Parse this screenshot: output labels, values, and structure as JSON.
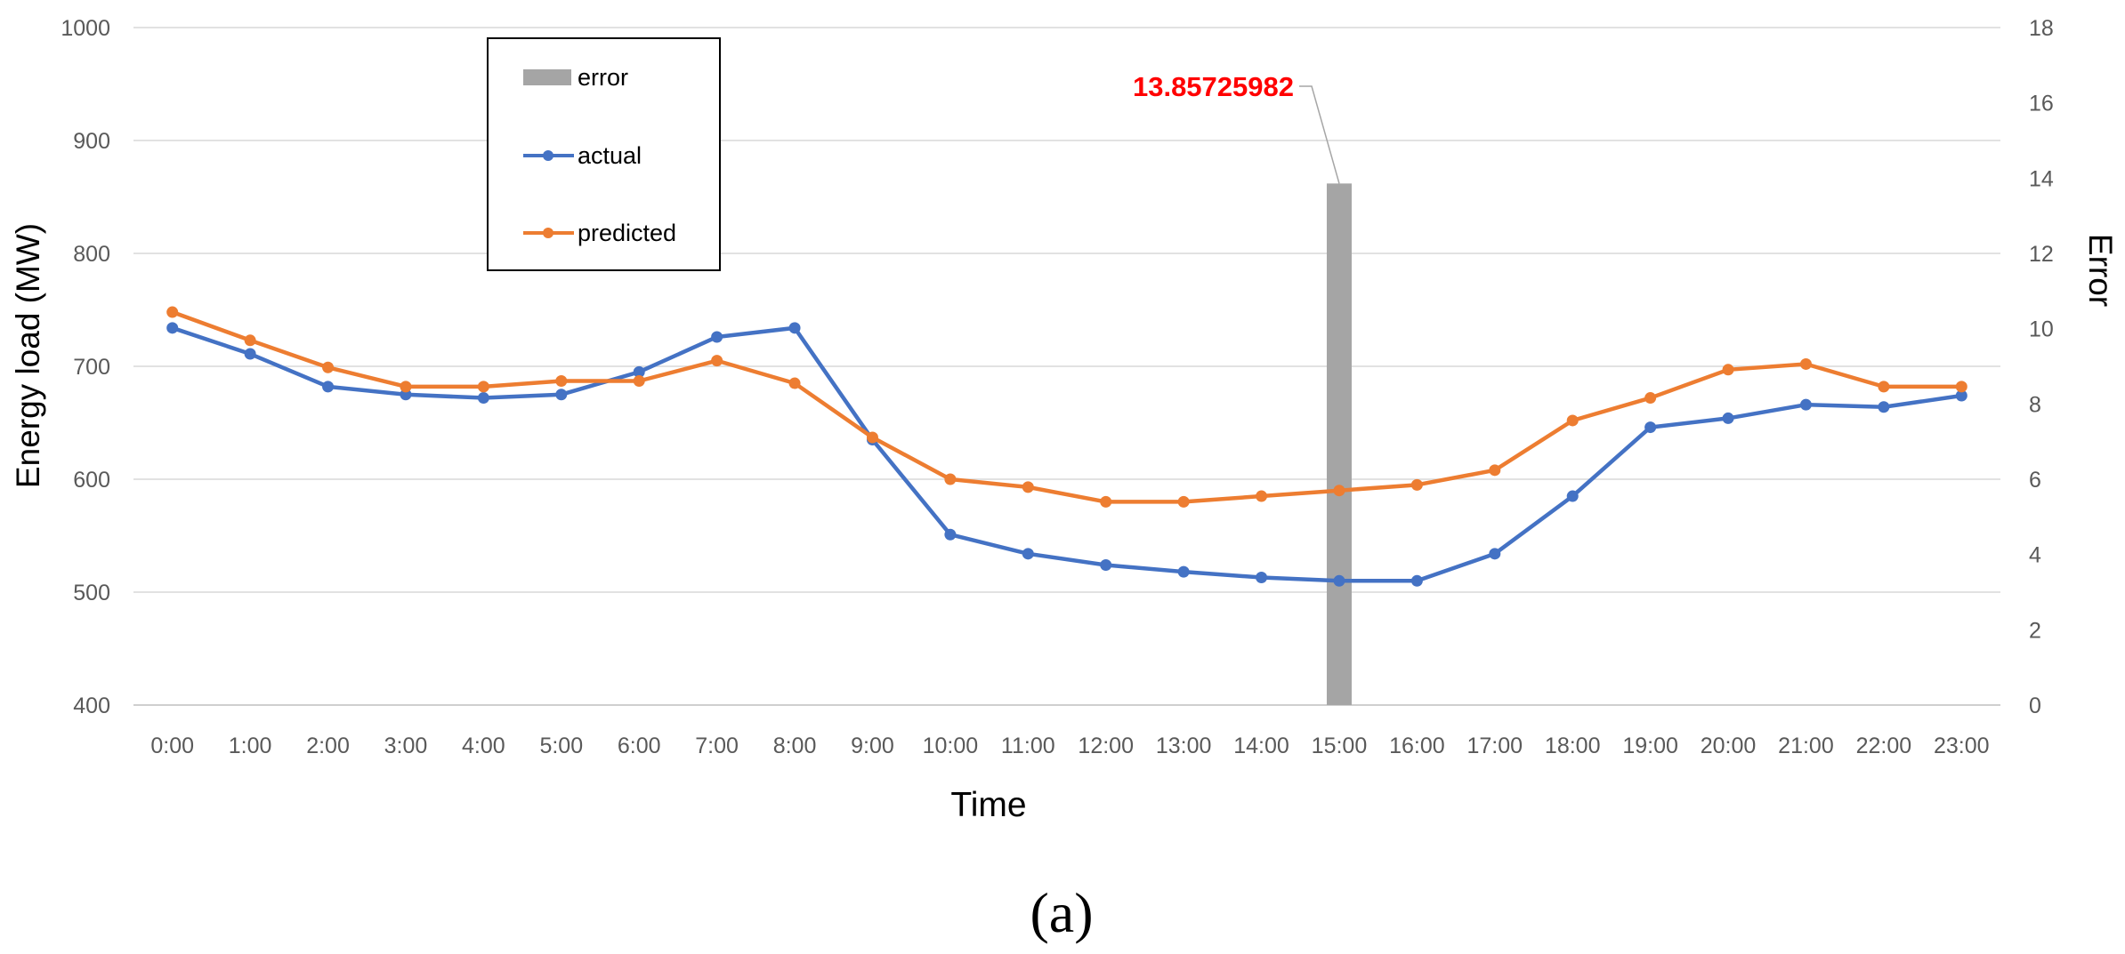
{
  "caption": "(a)",
  "chart_data": {
    "type": "line",
    "xlabel": "Time",
    "ylabel": "Energy load  (MW)",
    "y2label": "Error",
    "categories": [
      "0:00",
      "1:00",
      "2:00",
      "3:00",
      "4:00",
      "5:00",
      "6:00",
      "7:00",
      "8:00",
      "9:00",
      "10:00",
      "11:00",
      "12:00",
      "13:00",
      "14:00",
      "15:00",
      "16:00",
      "17:00",
      "18:00",
      "19:00",
      "20:00",
      "21:00",
      "22:00",
      "23:00"
    ],
    "ylim": [
      400,
      1000
    ],
    "y_ticks": [
      "1000",
      "900",
      "800",
      "700",
      "600",
      "500",
      "400"
    ],
    "y2lim": [
      0,
      18
    ],
    "y2_ticks": [
      "18",
      "16",
      "14",
      "12",
      "10",
      "8",
      "6",
      "4",
      "2",
      "0"
    ],
    "grid": true,
    "legend_position": "top-left, inside plot",
    "series": [
      {
        "name": "error",
        "type": "bar",
        "axis": "secondary",
        "color": "#a5a5a5",
        "values": [
          null,
          null,
          null,
          null,
          null,
          null,
          null,
          null,
          null,
          null,
          null,
          null,
          null,
          null,
          null,
          13.85725982,
          null,
          null,
          null,
          null,
          null,
          null,
          null,
          null
        ]
      },
      {
        "name": "actual",
        "type": "line",
        "axis": "primary",
        "color": "#4472c4",
        "values": [
          734,
          711,
          682,
          675,
          672,
          675,
          695,
          726,
          734,
          635,
          551,
          534,
          524,
          518,
          513,
          510,
          510,
          534,
          585,
          646,
          654,
          666,
          664,
          674
        ]
      },
      {
        "name": "predicted",
        "type": "line",
        "axis": "primary",
        "color": "#ed7d31",
        "values": [
          748,
          723,
          699,
          682,
          682,
          687,
          687,
          705,
          685,
          637,
          600,
          593,
          580,
          580,
          585,
          590,
          595,
          608,
          652,
          672,
          697,
          702,
          682,
          682
        ]
      }
    ],
    "annotations": [
      {
        "text": "13.85725982",
        "category": "15:00",
        "series": "error",
        "color": "#ff0000"
      }
    ]
  }
}
